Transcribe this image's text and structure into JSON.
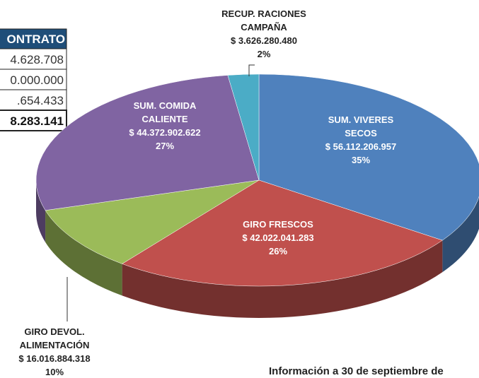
{
  "chart_data": {
    "type": "pie",
    "categories": [
      "SUM. VIVERES SECOS",
      "GIRO FRESCOS",
      "GIRO DEVOL. ALIMENTACIÓN",
      "SUM. COMIDA CALIENTE",
      "RECUP. RACIONES CAMPAÑA"
    ],
    "values": [
      56112206957,
      42022041283,
      16016884318,
      44372902622,
      3626280480
    ],
    "value_labels": [
      "$ 56.112.206.957",
      "$ 42.022.041.283",
      "$ 16.016.884.318",
      "$ 44.372.902.622",
      "$ 3.626.280.480"
    ],
    "percent_labels": [
      "35%",
      "26%",
      "10%",
      "27%",
      "2%"
    ],
    "colors": [
      "#4f81bd",
      "#c0504d",
      "#9bbb59",
      "#8064a2",
      "#4bacc6"
    ]
  },
  "table": {
    "header": "ONTRATO",
    "rows": [
      "4.628.708",
      "0.000.000",
      ".654.433",
      "8.283.141"
    ]
  },
  "footnote": "Información a 30 de septiembre de"
}
